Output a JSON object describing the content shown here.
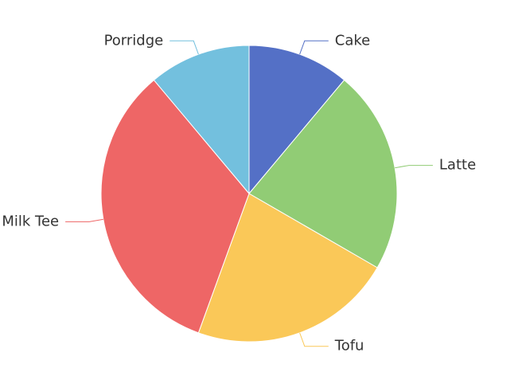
{
  "chart_data": {
    "type": "pie",
    "title": "",
    "categories": [
      "Cake",
      "Latte",
      "Tofu",
      "Milk Tee",
      "Porridge"
    ],
    "values": [
      1,
      2,
      2,
      3,
      1
    ],
    "colors": [
      "#5470c6",
      "#91cc75",
      "#fac858",
      "#ee6666",
      "#73c0de"
    ],
    "start_angle": "top",
    "direction": "clockwise",
    "legend": "none",
    "labels": "outside-with-leader-lines"
  }
}
